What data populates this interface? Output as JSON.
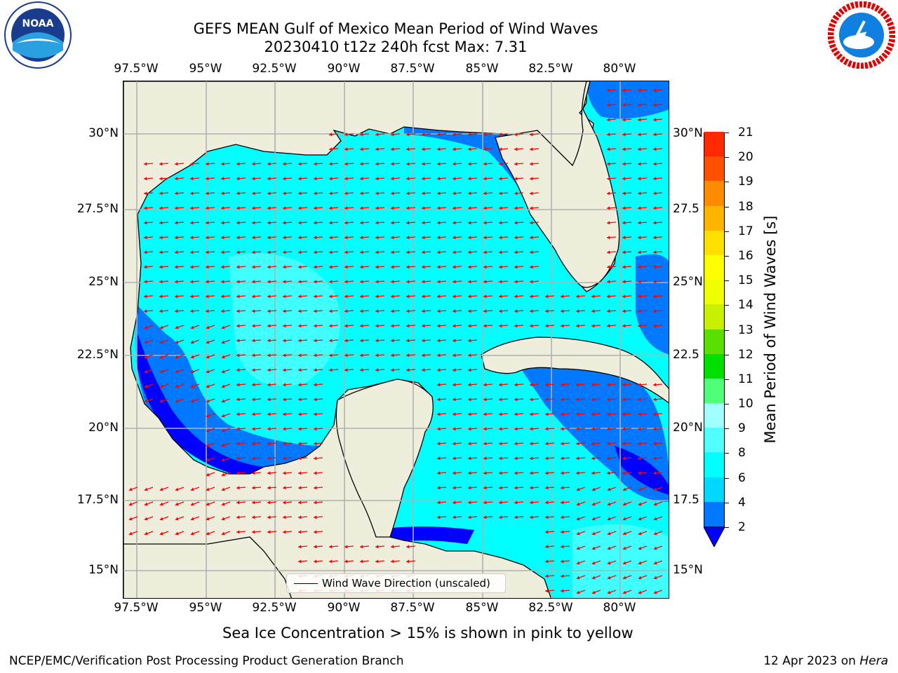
{
  "title_line1": "GEFS MEAN Gulf of Mexico Mean Period of Wind Waves",
  "title_line2": "20230410 t12z 240h fcst   Max: 7.31",
  "lon_ticks": [
    "97.5°W",
    "95°W",
    "92.5°W",
    "90°W",
    "87.5°W",
    "85°W",
    "82.5°W",
    "80°W"
  ],
  "lat_ticks": [
    "30°N",
    "27.5°N",
    "25°N",
    "22.5°N",
    "20°N",
    "17.5°N",
    "15°N"
  ],
  "lat_ticks_right": [
    "30°N",
    "27.5",
    "25°N",
    "22.5",
    "20°N",
    "17.5",
    "15°N"
  ],
  "legend": {
    "label": "Wind Wave Direction (unscaled)"
  },
  "colorbar": {
    "label": "Mean Period of Wind Waves [s]",
    "ticks": [
      "2",
      "4",
      "6",
      "8",
      "9",
      "10",
      "11",
      "12",
      "13",
      "14",
      "15",
      "16",
      "17",
      "18",
      "19",
      "20",
      "21"
    ],
    "colors": [
      "#0078ff",
      "#00d8ff",
      "#00ffff",
      "#50ffff",
      "#a0ffff",
      "#50ff78",
      "#00e000",
      "#58e000",
      "#c8f000",
      "#f0ff00",
      "#ffff00",
      "#ffe000",
      "#ffb400",
      "#ff8c00",
      "#ff5000",
      "#ff2800",
      "#ff0000"
    ],
    "extend_color": "#0000ff"
  },
  "colors": {
    "land": "#efeedd",
    "sea": "#00ffff",
    "arrow": "#ff0000",
    "grid": "#b0b0b0"
  },
  "footer": {
    "note": "Sea Ice Concentration > 15% is shown in pink to yellow",
    "credit": "NCEP/EMC/Verification Post Processing Product Generation Branch",
    "date": "12 Apr 2023 on",
    "host": "Hera"
  },
  "logos": {
    "left": "NOAA",
    "right": "NATIONAL WEATHER SERVICE"
  }
}
